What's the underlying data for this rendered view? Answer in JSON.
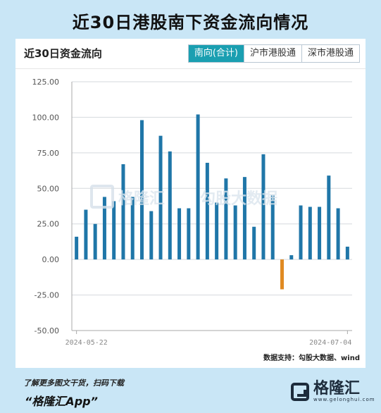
{
  "header": {
    "title": "近30日港股南下资金流向情况"
  },
  "card": {
    "title": "近30日资金流向",
    "tabs": [
      {
        "label": "南向(合计)",
        "active": true
      },
      {
        "label": "沪市港股通",
        "active": false
      },
      {
        "label": "深市港股通",
        "active": false
      }
    ],
    "source": "数据支持：勾股大数据、wind"
  },
  "watermark": {
    "brand": "格隆汇",
    "brand2": "勾股大数据"
  },
  "footer": {
    "line1": "了解更多图文干货，扫码下载",
    "line2": "“格隆汇App”",
    "brand_name": "格隆汇",
    "brand_url": "www.gelonghui.com"
  },
  "colors": {
    "positive": "#1f76a8",
    "negative": "#e08a22",
    "accent": "#1a9fb1"
  },
  "chart_data": {
    "type": "bar",
    "x_start_label": "2024-05-22",
    "x_end_label": "2024-07-04",
    "values": [
      16,
      35,
      25,
      44,
      41,
      67,
      44,
      98,
      34,
      87,
      76,
      36,
      36,
      102,
      68,
      40,
      57,
      38,
      58,
      23,
      74,
      45,
      -21,
      3,
      38,
      37,
      37,
      59,
      36,
      9
    ],
    "yticks": [
      "125.00",
      "100.00",
      "75.00",
      "50.00",
      "25.00",
      "0.00",
      "-25.00",
      "-50.00"
    ],
    "ylim": [
      -50,
      125
    ],
    "grid": true
  }
}
